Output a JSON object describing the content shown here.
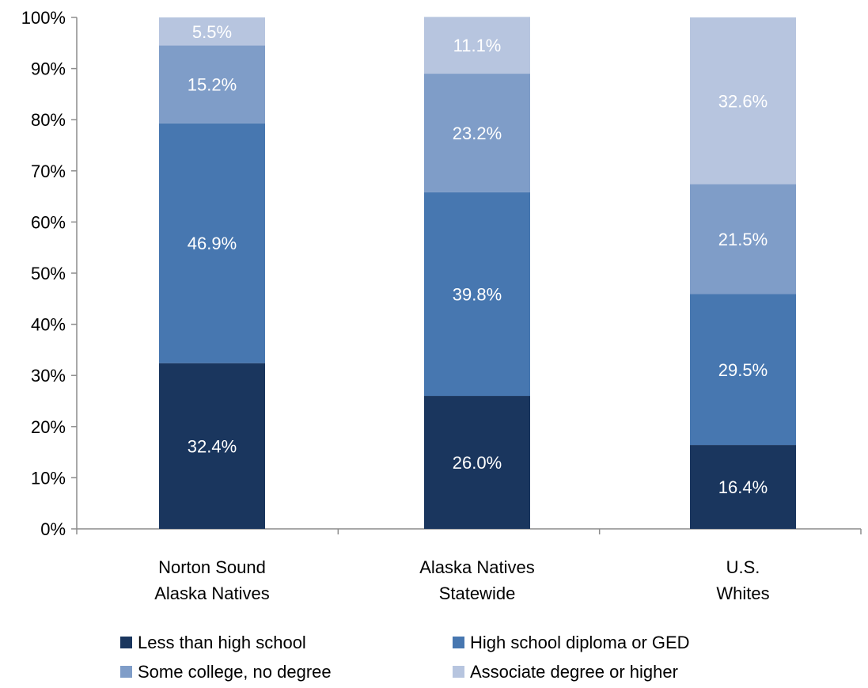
{
  "chart_data": {
    "type": "bar",
    "stacked": true,
    "categories": [
      [
        "Norton Sound",
        "Alaska Natives"
      ],
      [
        "Alaska Natives",
        "Statewide"
      ],
      [
        "U.S.",
        "Whites"
      ]
    ],
    "series": [
      {
        "name": "Less than high school",
        "values": [
          32.4,
          26.0,
          16.4
        ],
        "labels": [
          "32.4%",
          "26.0%",
          "16.4%"
        ],
        "color": "#1a365e"
      },
      {
        "name": "High school diploma or GED",
        "values": [
          46.9,
          39.8,
          29.5
        ],
        "labels": [
          "46.9%",
          "39.8%",
          "29.5%"
        ],
        "color": "#4777b0"
      },
      {
        "name": "Some college, no degree",
        "values": [
          15.2,
          23.2,
          21.5
        ],
        "labels": [
          "15.2%",
          "23.2%",
          "21.5%"
        ],
        "color": "#7f9dc8"
      },
      {
        "name": "Associate degree or higher",
        "values": [
          5.5,
          11.1,
          32.6
        ],
        "labels": [
          "5.5%",
          "11.1%",
          "32.6%"
        ],
        "color": "#b7c5df"
      }
    ],
    "ylim": [
      0,
      100
    ],
    "yticks": [
      "0%",
      "10%",
      "20%",
      "30%",
      "40%",
      "50%",
      "60%",
      "70%",
      "80%",
      "90%",
      "100%"
    ],
    "grid": false,
    "legend_position": "bottom",
    "axis_color": "#8c8c8c"
  }
}
